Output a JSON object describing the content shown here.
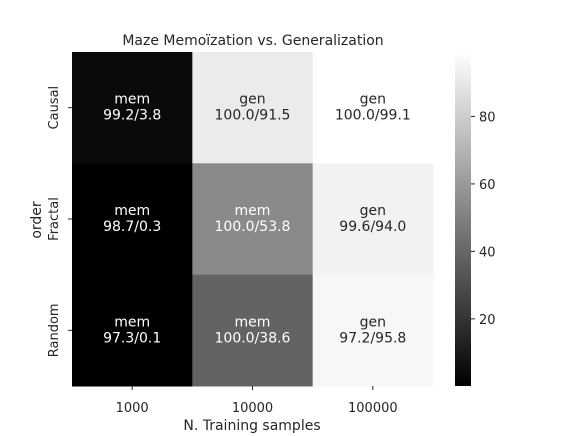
{
  "chart_data": {
    "type": "heatmap",
    "title": "Maze Memoïzation vs. Generalization",
    "xlabel": "N. Training samples",
    "ylabel": "order",
    "x_categories": [
      "1000",
      "10000",
      "100000"
    ],
    "y_categories": [
      "Causal",
      "Fractal",
      "Random"
    ],
    "cells": [
      [
        {
          "label": "mem",
          "text": "99.2/3.8",
          "value": 3.8
        },
        {
          "label": "gen",
          "text": "100.0/91.5",
          "value": 91.5
        },
        {
          "label": "gen",
          "text": "100.0/99.1",
          "value": 99.1
        }
      ],
      [
        {
          "label": "mem",
          "text": "98.7/0.3",
          "value": 0.3
        },
        {
          "label": "mem",
          "text": "100.0/53.8",
          "value": 53.8
        },
        {
          "label": "gen",
          "text": "99.6/94.0",
          "value": 94.0
        }
      ],
      [
        {
          "label": "mem",
          "text": "97.3/0.1",
          "value": 0.1
        },
        {
          "label": "mem",
          "text": "100.0/38.6",
          "value": 38.6
        },
        {
          "label": "gen",
          "text": "97.2/95.8",
          "value": 95.8
        }
      ]
    ],
    "colorbar": {
      "colormap": "gray",
      "range": [
        0.1,
        99.1
      ],
      "ticks": [
        20,
        40,
        60,
        80
      ]
    },
    "text_color_dark_cell": "#ffffff",
    "text_color_light_cell": "#262626"
  }
}
